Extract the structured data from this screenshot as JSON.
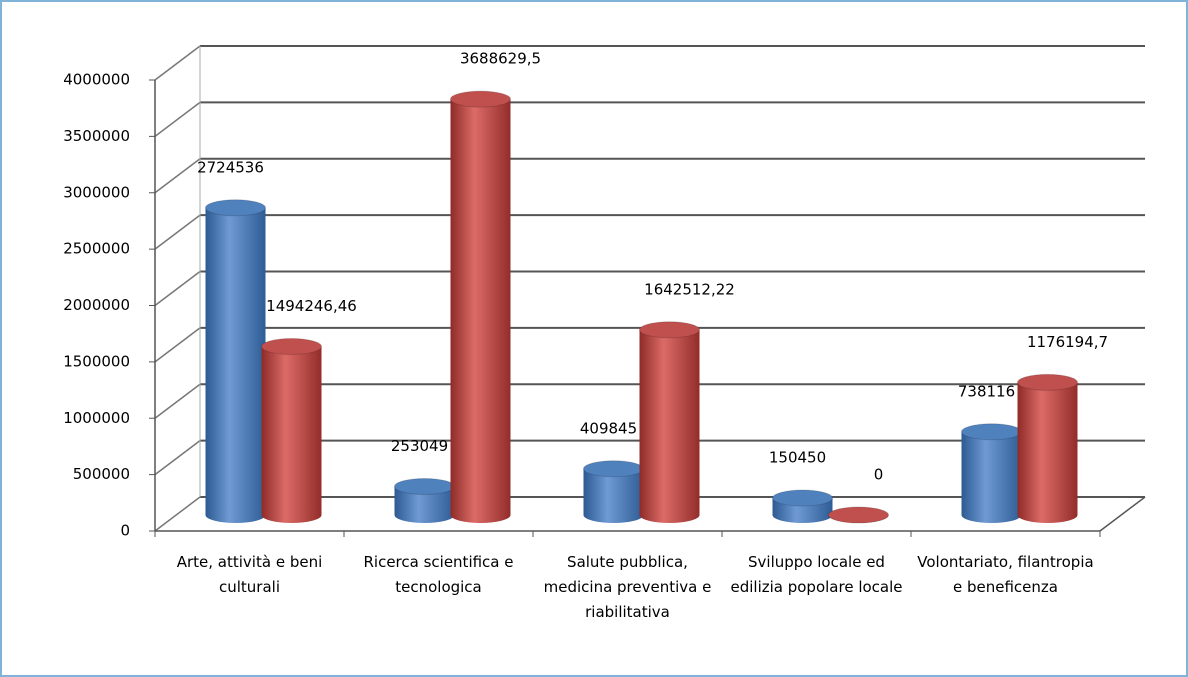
{
  "chart_data": {
    "type": "bar3d",
    "categories": [
      "Arte, attività e beni culturali",
      "Ricerca scientifica e tecnologica",
      "Salute pubblica, medicina preventiva e riabilitativa",
      "Sviluppo locale ed edilizia popolare locale",
      "Volontariato, filantropia e beneficenza"
    ],
    "series": [
      {
        "color": "#4f81bd",
        "values": [
          2724536,
          253049,
          409845,
          150450,
          738116
        ]
      },
      {
        "color": "#c0504d",
        "values": [
          1494246.46,
          3688629.5,
          1642512.22,
          0,
          1176194.7
        ],
        "value_labels": [
          "1494246,46",
          "3688629,5",
          "1642512,22",
          "0",
          "1176194,7"
        ]
      }
    ],
    "ylim": [
      0,
      4000000
    ],
    "yticks": [
      0,
      500000,
      1000000,
      1500000,
      2000000,
      2500000,
      3000000,
      3500000,
      4000000
    ],
    "grid": true
  }
}
